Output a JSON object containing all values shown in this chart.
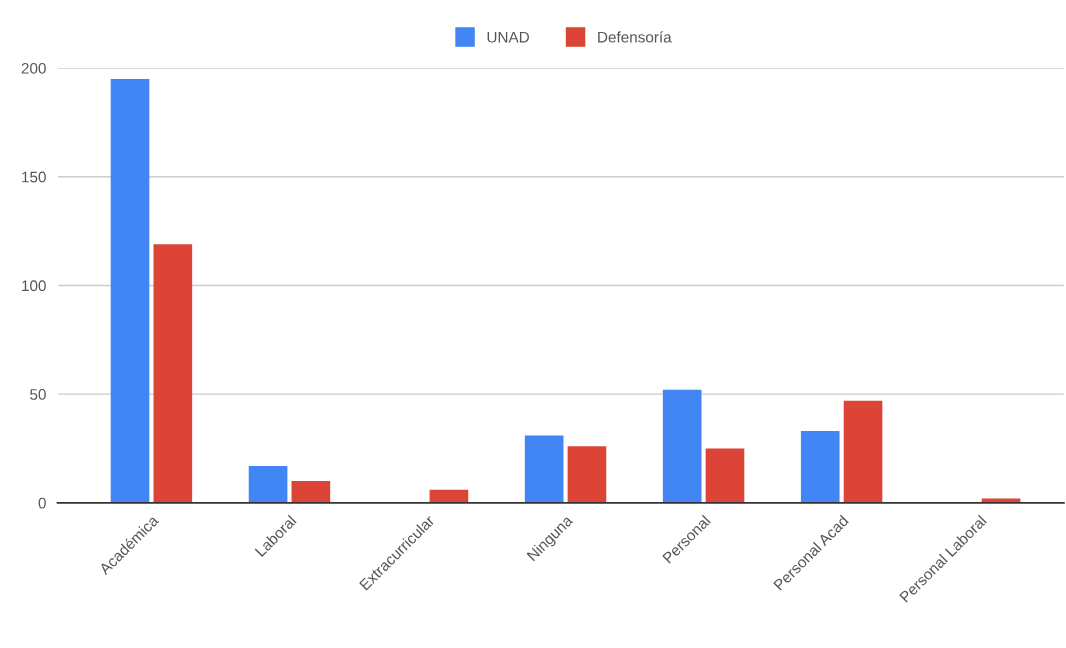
{
  "chart_data": {
    "type": "bar",
    "categories": [
      "Académica",
      "Laboral",
      "Extracurricular",
      "Ninguna",
      "Personal",
      "Personal Acad",
      "Personal Laboral"
    ],
    "series": [
      {
        "name": "UNAD",
        "color": "#4285f4",
        "values": [
          195,
          17,
          0,
          31,
          52,
          33,
          0
        ]
      },
      {
        "name": "Defensoría",
        "color": "#db4437",
        "values": [
          119,
          10,
          6,
          26,
          25,
          47,
          2
        ]
      }
    ],
    "ylim": [
      0,
      200
    ],
    "yticks": [
      0,
      50,
      100,
      150,
      200
    ],
    "grid": "y",
    "legend": "top"
  }
}
